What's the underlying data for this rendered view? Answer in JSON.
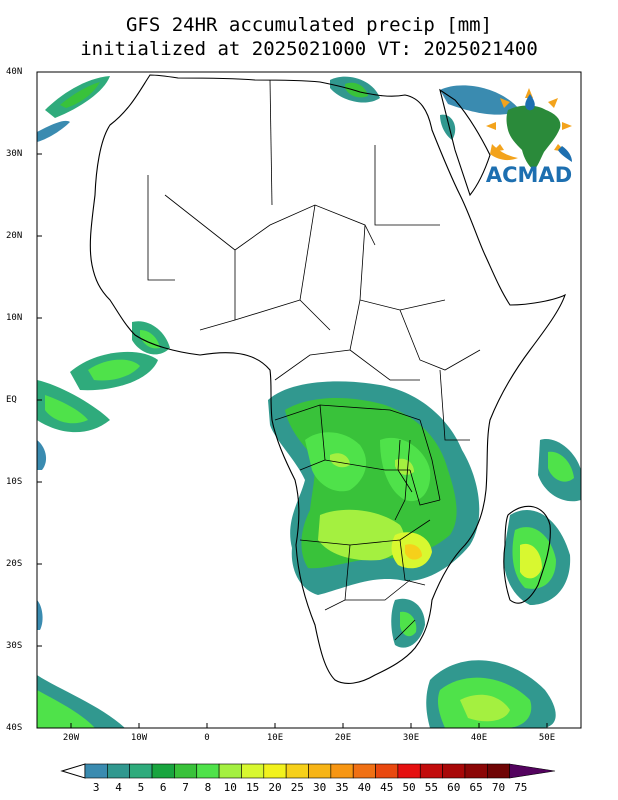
{
  "title_line1": "GFS 24HR accumulated precip [mm]",
  "title_line2": "initialized at 2025021000 VT: 2025021400",
  "lat_labels": [
    "40N",
    "30N",
    "20N",
    "10N",
    "EQ",
    "10S",
    "20S",
    "30S",
    "40S"
  ],
  "lon_labels": [
    "20W",
    "10W",
    "0",
    "10E",
    "20E",
    "30E",
    "40E",
    "50E"
  ],
  "logo": {
    "text": "ACMAD",
    "color": "#1d6fb0"
  },
  "colorbar": {
    "labels": [
      "3",
      "4",
      "5",
      "6",
      "7",
      "8",
      "10",
      "15",
      "20",
      "25",
      "30",
      "35",
      "40",
      "45",
      "50",
      "55",
      "60",
      "65",
      "70",
      "75"
    ],
    "colors": [
      "#3a8bb0",
      "#31988f",
      "#2fab7c",
      "#19a53f",
      "#39c23a",
      "#4fe24a",
      "#a4f040",
      "#d8f830",
      "#f2f21d",
      "#f6d01a",
      "#f7b416",
      "#f79613",
      "#f07014",
      "#e9480f",
      "#e51010",
      "#c20c0c",
      "#a80808",
      "#8b0606",
      "#6f0404",
      "#53035e"
    ]
  },
  "colors": {
    "coast": "#000000",
    "precip_light": "#3a8bb0",
    "precip_mid": "#39c23a",
    "precip_high": "#f2f21d"
  }
}
